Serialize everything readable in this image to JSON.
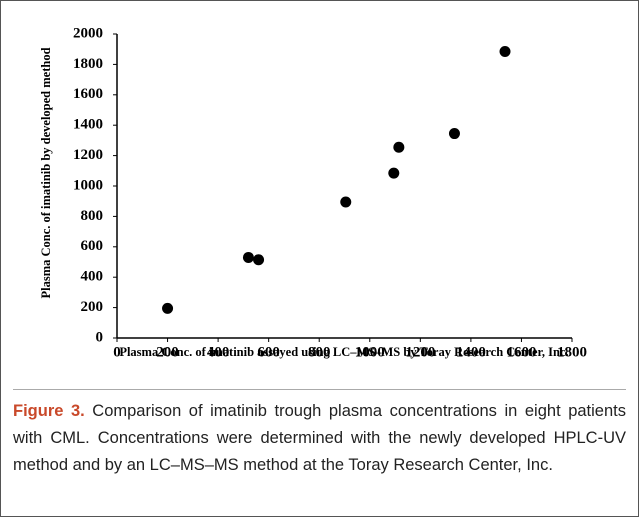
{
  "chart_data": {
    "type": "scatter",
    "x_label": "Plasma Conc. of imatinib assayed using LC–MS–MS by Toray Research Center, Inc.",
    "y_label": "Plasma Conc. of imatinib by developed method",
    "series": [
      {
        "color": "#000000",
        "x": [
          200,
          520,
          560,
          905,
          1095,
          1115,
          1335,
          1535
        ],
        "values": [
          195,
          530,
          515,
          895,
          1085,
          1255,
          1345,
          1885
        ]
      }
    ],
    "xlim": [
      0,
      1800
    ],
    "xticks": [
      0,
      200,
      400,
      600,
      800,
      1000,
      1200,
      1400,
      1600,
      1800
    ],
    "ylim": [
      0,
      2000
    ],
    "yticks": [
      0,
      200,
      400,
      600,
      800,
      1000,
      1200,
      1400,
      1600,
      1800,
      2000
    ],
    "grid": false
  },
  "caption": {
    "label": "Figure 3.",
    "text": "Comparison of imatinib trough plasma concentrations in eight patients with CML. Concentrations were determined with the newly developed HPLC-UV method and by an LC–MS–MS method at the Toray Research Center, Inc."
  }
}
